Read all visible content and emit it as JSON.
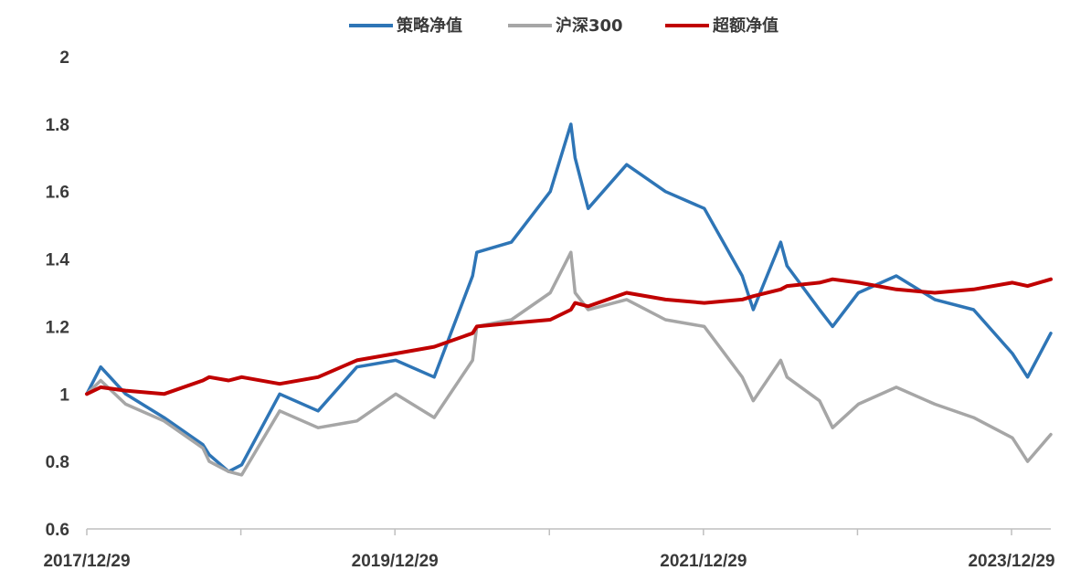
{
  "chart_data": {
    "type": "line",
    "title": "",
    "xlabel": "",
    "ylabel": "",
    "ylim": [
      0.6,
      2.0
    ],
    "yticks": [
      "0.6",
      "0.8",
      "1",
      "1.2",
      "1.4",
      "1.6",
      "1.8",
      "2"
    ],
    "x_range": [
      "2017/12/29",
      "2024/03/31"
    ],
    "x_tick_labels": [
      "2017/12/29",
      "2019/12/29",
      "2021/12/29",
      "2023/12/29"
    ],
    "grid": false,
    "legend_position": "top-center",
    "x": [
      "2017/12/29",
      "2018/01/31",
      "2018/03/31",
      "2018/06/30",
      "2018/09/30",
      "2018/10/15",
      "2018/11/30",
      "2018/12/31",
      "2019/03/31",
      "2019/06/30",
      "2019/09/30",
      "2019/12/31",
      "2020/03/31",
      "2020/06/30",
      "2020/07/10",
      "2020/09/30",
      "2020/12/31",
      "2021/02/18",
      "2021/02/28",
      "2021/03/31",
      "2021/06/30",
      "2021/09/30",
      "2021/12/31",
      "2022/03/31",
      "2022/04/26",
      "2022/06/30",
      "2022/07/15",
      "2022/09/30",
      "2022/10/31",
      "2022/12/31",
      "2023/03/31",
      "2023/06/30",
      "2023/09/30",
      "2023/12/31",
      "2024/02/05",
      "2024/03/31"
    ],
    "series": [
      {
        "name": "策略净值",
        "color": "#2e75b6",
        "values": [
          1.0,
          1.08,
          1.0,
          0.93,
          0.85,
          0.82,
          0.77,
          0.79,
          1.0,
          0.95,
          1.08,
          1.1,
          1.05,
          1.35,
          1.42,
          1.45,
          1.6,
          1.8,
          1.7,
          1.55,
          1.68,
          1.6,
          1.55,
          1.35,
          1.25,
          1.45,
          1.38,
          1.25,
          1.2,
          1.3,
          1.35,
          1.28,
          1.25,
          1.12,
          1.05,
          1.18
        ]
      },
      {
        "name": "沪深300",
        "color": "#a6a6a6",
        "values": [
          1.0,
          1.04,
          0.97,
          0.92,
          0.84,
          0.8,
          0.77,
          0.76,
          0.95,
          0.9,
          0.92,
          1.0,
          0.93,
          1.1,
          1.2,
          1.22,
          1.3,
          1.42,
          1.3,
          1.25,
          1.28,
          1.22,
          1.2,
          1.05,
          0.98,
          1.1,
          1.05,
          0.98,
          0.9,
          0.97,
          1.02,
          0.97,
          0.93,
          0.87,
          0.8,
          0.88
        ]
      },
      {
        "name": "超额净值",
        "color": "#c00000",
        "values": [
          1.0,
          1.02,
          1.01,
          1.0,
          1.04,
          1.05,
          1.04,
          1.05,
          1.03,
          1.05,
          1.1,
          1.12,
          1.14,
          1.18,
          1.2,
          1.21,
          1.22,
          1.25,
          1.27,
          1.26,
          1.3,
          1.28,
          1.27,
          1.28,
          1.29,
          1.31,
          1.32,
          1.33,
          1.34,
          1.33,
          1.31,
          1.3,
          1.31,
          1.33,
          1.32,
          1.34
        ]
      }
    ]
  }
}
